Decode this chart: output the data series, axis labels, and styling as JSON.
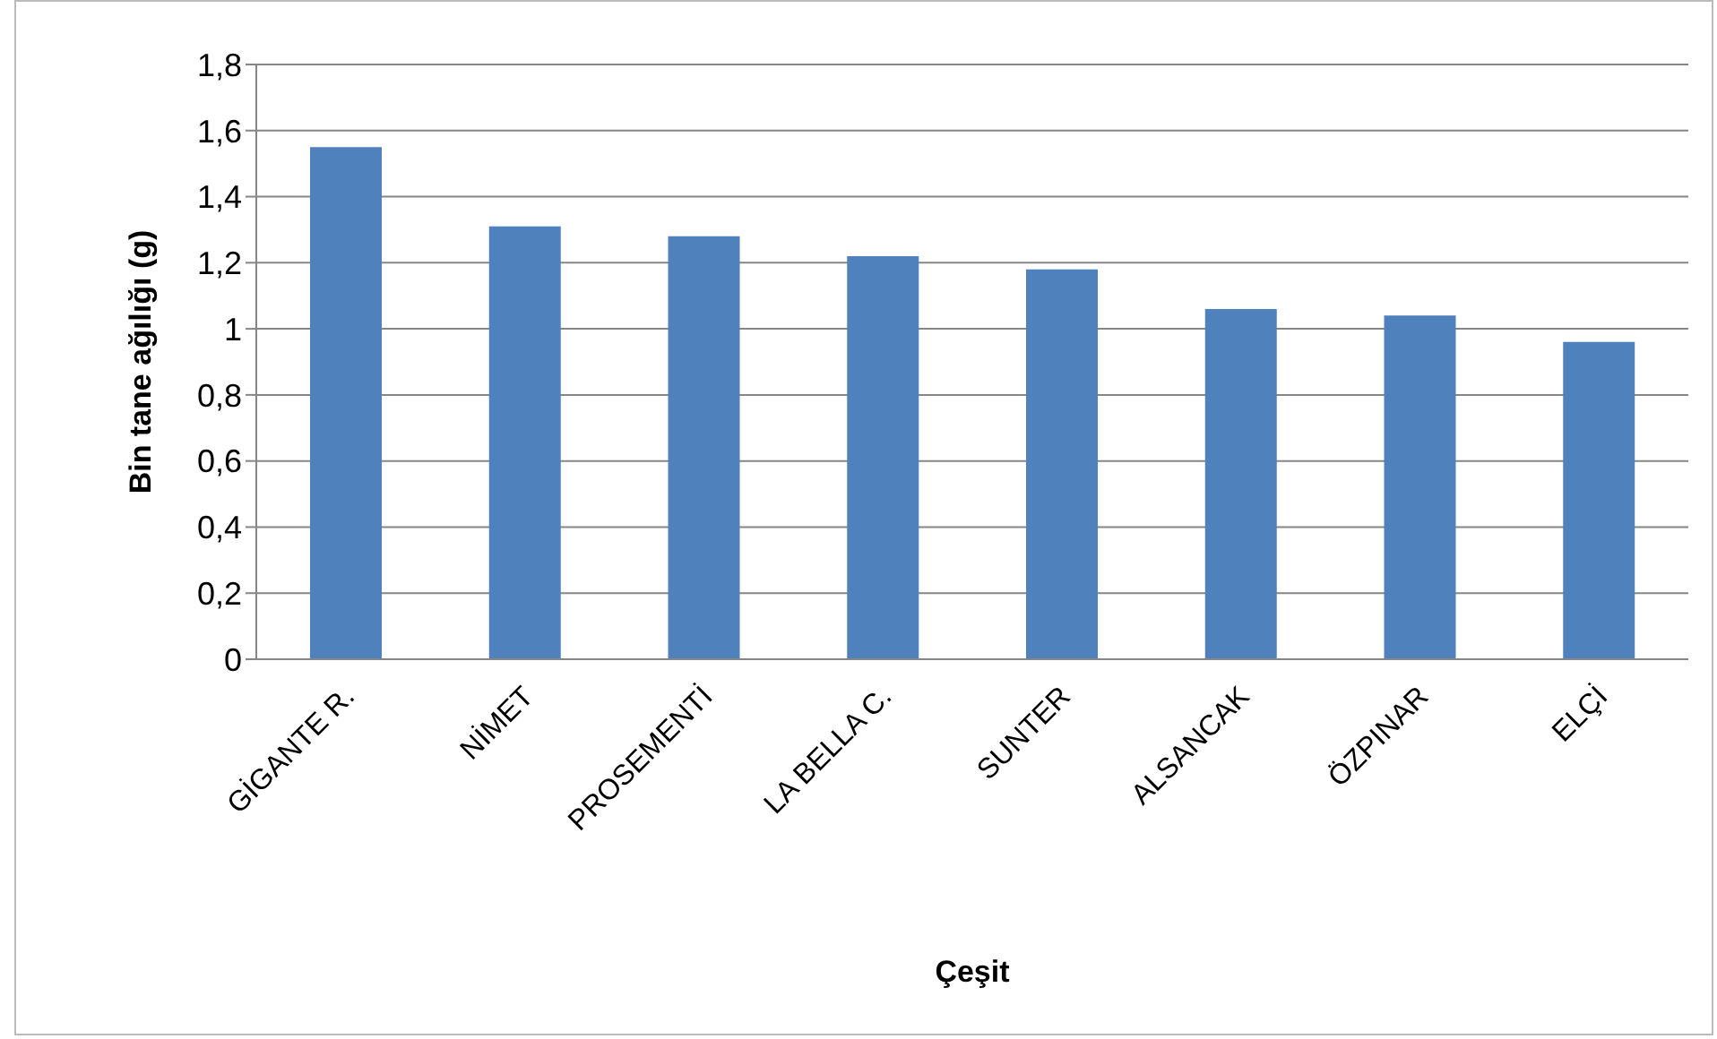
{
  "chart_data": {
    "type": "bar",
    "xlabel": "Çeşit",
    "ylabel": "Bin tane ağılığı (g)",
    "categories": [
      "GİGANTE R.",
      "NİMET",
      "PROSEMENTİ",
      "LA BELLA C.",
      "SUNTER",
      "ALSANCAK",
      "ÖZPINAR",
      "ELÇİ"
    ],
    "values": [
      1.55,
      1.31,
      1.28,
      1.22,
      1.18,
      1.06,
      1.04,
      0.96
    ],
    "color": "#4f81bd",
    "ylim": [
      0,
      1.8
    ],
    "yticks": [
      0,
      {
        "value": 0.2,
        "label": "0,2"
      },
      {
        "value": 0.4,
        "label": "0,4"
      },
      {
        "value": 0.6,
        "label": "0,6"
      },
      {
        "value": 0.8,
        "label": "0,8"
      },
      1,
      {
        "value": 1.2,
        "label": "1,2"
      },
      {
        "value": 1.4,
        "label": "1,4"
      },
      {
        "value": 1.6,
        "label": "1,6"
      },
      {
        "value": 1.8,
        "label": "1,8"
      }
    ],
    "grid": "y",
    "legend": false
  }
}
